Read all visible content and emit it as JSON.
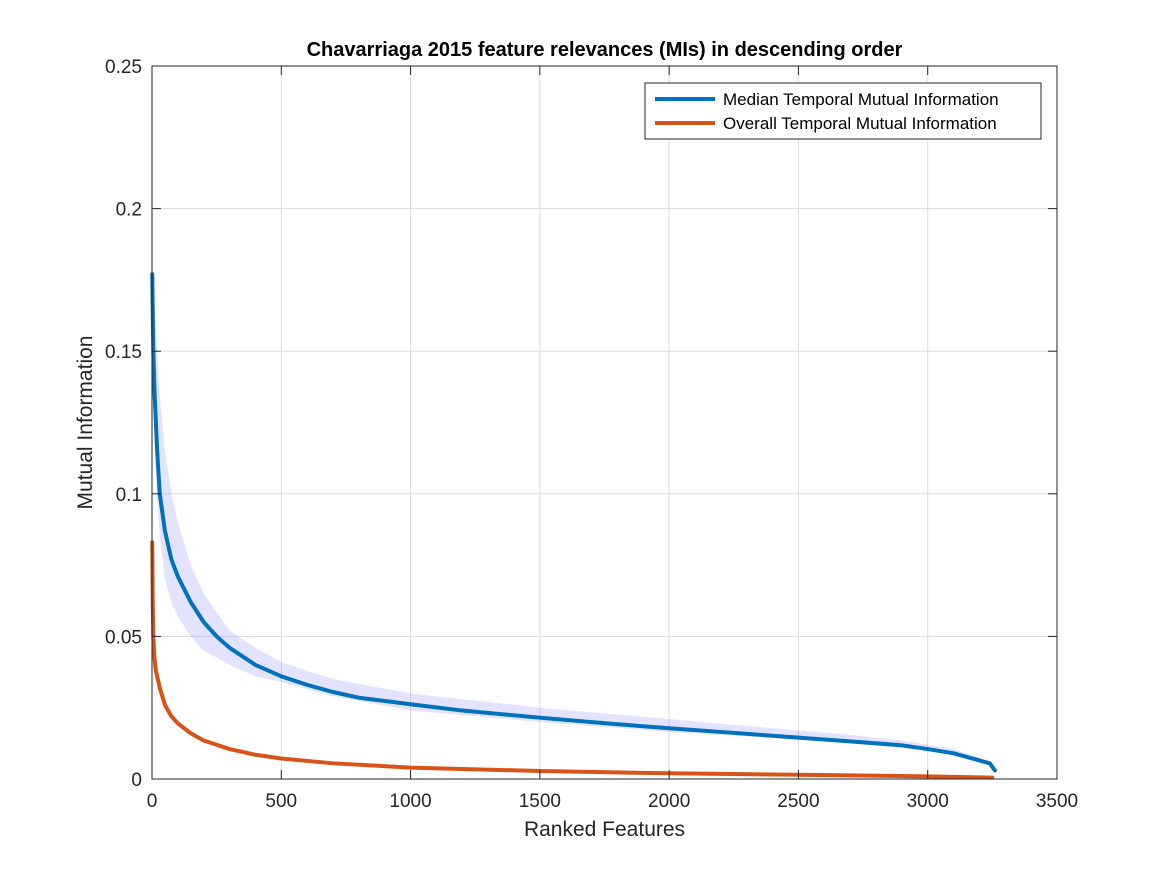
{
  "chart_data": {
    "type": "line",
    "title": "Chavarriaga 2015 feature relevances (MIs) in descending order",
    "xlabel": "Ranked Features",
    "ylabel": "Mutual Information",
    "xlim": [
      0,
      3500
    ],
    "ylim": [
      0,
      0.25
    ],
    "xticks": [
      0,
      500,
      1000,
      1500,
      2000,
      2500,
      3000,
      3500
    ],
    "yticks": [
      0,
      0.05,
      0.1,
      0.15,
      0.2,
      0.25
    ],
    "xtick_labels": [
      "0",
      "500",
      "1000",
      "1500",
      "2000",
      "2500",
      "3000",
      "3500"
    ],
    "ytick_labels": [
      "0",
      "0.05",
      "0.1",
      "0.15",
      "0.2",
      "0.25"
    ],
    "grid": true,
    "legend_position": "top-right",
    "series": [
      {
        "name": "Median Temporal Mutual Information",
        "color": "#0072BD",
        "x": [
          1,
          5,
          10,
          20,
          30,
          50,
          75,
          100,
          150,
          200,
          250,
          300,
          400,
          500,
          600,
          700,
          800,
          1000,
          1200,
          1500,
          1800,
          2000,
          2200,
          2500,
          2700,
          2900,
          3000,
          3100,
          3200,
          3240,
          3260
        ],
        "y": [
          0.177,
          0.15,
          0.135,
          0.115,
          0.1,
          0.087,
          0.077,
          0.071,
          0.062,
          0.055,
          0.05,
          0.046,
          0.04,
          0.036,
          0.033,
          0.0305,
          0.0285,
          0.0262,
          0.024,
          0.0215,
          0.0192,
          0.0178,
          0.0165,
          0.0145,
          0.0132,
          0.0118,
          0.0105,
          0.009,
          0.0065,
          0.0055,
          0.003
        ]
      },
      {
        "name": "Overall Temporal Mutual Information",
        "color": "#D95319",
        "x": [
          1,
          3,
          5,
          10,
          15,
          20,
          30,
          50,
          75,
          100,
          150,
          200,
          300,
          400,
          500,
          700,
          1000,
          1500,
          2000,
          2500,
          3000,
          3250
        ],
        "y": [
          0.083,
          0.06,
          0.05,
          0.042,
          0.038,
          0.036,
          0.032,
          0.026,
          0.022,
          0.0195,
          0.016,
          0.0135,
          0.0105,
          0.0085,
          0.0072,
          0.0055,
          0.004,
          0.0028,
          0.002,
          0.0015,
          0.0009,
          0.0005
        ]
      }
    ],
    "band": {
      "color": "#6666FF",
      "x": [
        1,
        10,
        20,
        30,
        50,
        75,
        100,
        150,
        200,
        300,
        400,
        500,
        700,
        1000,
        1500,
        2000,
        2500,
        2700,
        2900,
        3000,
        3100,
        3200,
        3240,
        3260
      ],
      "upper": [
        0.18,
        0.165,
        0.15,
        0.135,
        0.115,
        0.1,
        0.09,
        0.075,
        0.065,
        0.052,
        0.046,
        0.041,
        0.035,
        0.03,
        0.025,
        0.021,
        0.017,
        0.0155,
        0.0135,
        0.012,
        0.0105,
        0.0075,
        0.006,
        0.0035
      ],
      "lower": [
        0.17,
        0.12,
        0.098,
        0.085,
        0.07,
        0.062,
        0.057,
        0.05,
        0.045,
        0.04,
        0.036,
        0.034,
        0.029,
        0.024,
        0.02,
        0.0165,
        0.0138,
        0.0126,
        0.0112,
        0.01,
        0.0085,
        0.0058,
        0.0048,
        0.0025
      ]
    }
  }
}
